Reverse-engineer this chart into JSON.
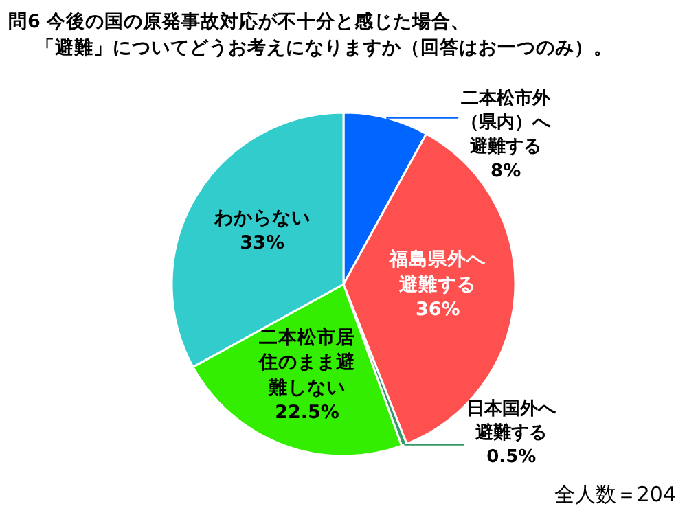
{
  "chart_data": {
    "type": "pie",
    "title": "問6 今後の国の原発事故対応が不十分と感じた場合、「避難」についてどうお考えになりますか（回答はお一つのみ）。",
    "categories": [
      "二本松市外（県内）へ避難する",
      "福島県外へ避難する",
      "日本国外へ避難する",
      "二本松市居住のまま避難しない",
      "わからない"
    ],
    "values": [
      8,
      36,
      0.5,
      22.5,
      33
    ],
    "colors": [
      "#0066ff",
      "#ff5050",
      "#339966",
      "#33ee00",
      "#33cccc"
    ],
    "value_labels": [
      "8%",
      "36%",
      "0.5%",
      "22.5%",
      "33%"
    ],
    "annotations": [
      "全人数＝204"
    ]
  }
}
